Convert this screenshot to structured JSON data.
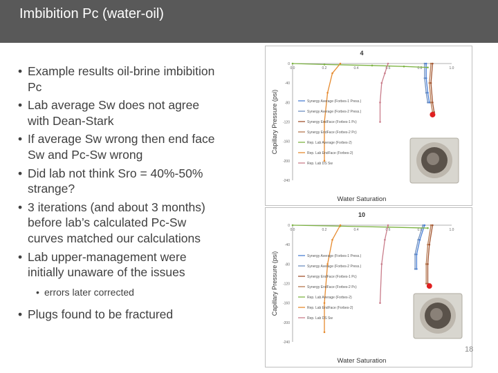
{
  "title": "Imbibition Pc (water-oil)",
  "bullets": [
    "Example results oil-brine imbibition Pc",
    "Lab average Sw does not agree with Dean-Stark",
    "If average Sw wrong then end face Sw and Pc-Sw wrong",
    "Did lab not think Sro = 40%-50% strange?",
    "3 iterations (and about 3 months) before lab’s calculated Pc-Sw curves matched our calculations",
    "Lab upper-management were initially unaware of the issues"
  ],
  "sub_bullet": "errors later corrected",
  "last_bullet": "Plugs found to be fractured",
  "page_number": "18",
  "chart_data": [
    {
      "type": "line",
      "title": "4",
      "xlabel": "Water Saturation",
      "ylabel": "Capillary Pressure (psi)",
      "xlim": [
        0,
        1.0
      ],
      "ylim": [
        -240,
        0
      ],
      "xticks": [
        "0.0",
        "0.2",
        "0.4",
        "0.6",
        "0.8",
        "1.0"
      ],
      "yticks": [
        "0",
        "-20",
        "-40",
        "-60",
        "-80",
        "-100",
        "-120",
        "-140",
        "-160",
        "-180",
        "-200",
        "-220",
        "-240"
      ],
      "legend": [
        "Synergy Average (Forbes-1 Press.)",
        "Synergy Average (Forbes-2 Press.)",
        "Synergy EndFace (Forbes-1 Pc)",
        "Synergy EndFace (Forbes-2 Pc)",
        "Rep. Lab Average (Forbes-2)",
        "Rep. Lab EndFace (Forbes-2)",
        "Rep. Lab DS Sw"
      ],
      "series": [
        {
          "color": "#4a7fd4",
          "points": [
            [
              0.84,
              0
            ],
            [
              0.84,
              -30
            ],
            [
              0.85,
              -60
            ],
            [
              0.86,
              -80
            ]
          ]
        },
        {
          "color": "#6c8ebf",
          "points": [
            [
              0.83,
              0
            ],
            [
              0.83,
              -30
            ],
            [
              0.84,
              -60
            ],
            [
              0.85,
              -80
            ]
          ]
        },
        {
          "color": "#a0522d",
          "points": [
            [
              0.88,
              0
            ],
            [
              0.87,
              -40
            ],
            [
              0.88,
              -80
            ],
            [
              0.89,
              -100
            ]
          ]
        },
        {
          "color": "#b5774f",
          "points": [
            [
              0.87,
              0
            ],
            [
              0.86,
              -40
            ],
            [
              0.87,
              -80
            ],
            [
              0.88,
              -100
            ]
          ]
        },
        {
          "color": "#7cb342",
          "points": [
            [
              0.0,
              0
            ],
            [
              0.2,
              -2
            ],
            [
              0.5,
              -4
            ],
            [
              0.7,
              -6
            ],
            [
              0.85,
              -8
            ]
          ]
        },
        {
          "color": "#e68a2e",
          "points": [
            [
              0.3,
              0
            ],
            [
              0.25,
              -20
            ],
            [
              0.22,
              -60
            ],
            [
              0.2,
              -120
            ],
            [
              0.2,
              -200
            ]
          ]
        },
        {
          "color": "#c97c8a",
          "points": [
            [
              0.6,
              0
            ],
            [
              0.58,
              -20
            ],
            [
              0.56,
              -40
            ],
            [
              0.55,
              -80
            ],
            [
              0.55,
              -120
            ]
          ]
        }
      ],
      "points": [
        {
          "label": "Rep. Lab DS Sw",
          "x": 0.88,
          "y": -105,
          "color": "#e02020"
        }
      ]
    },
    {
      "type": "line",
      "title": "10",
      "xlabel": "Water Saturation",
      "ylabel": "Capillary Pressure (psi)",
      "xlim": [
        0,
        1.0
      ],
      "ylim": [
        -240,
        0
      ],
      "xticks": [
        "0.0",
        "0.2",
        "0.4",
        "0.6",
        "0.8",
        "1.0"
      ],
      "yticks": [
        "0",
        "-20",
        "-40",
        "-60",
        "-80",
        "-100",
        "-120",
        "-140",
        "-160",
        "-180",
        "-200",
        "-220",
        "-240"
      ],
      "legend": [
        "Synergy Average (Forbes-1 Press.)",
        "Synergy Average (Forbes-2 Press.)",
        "Synergy EndFace (Forbes-1 Pc)",
        "Synergy EndFace (Forbes-2 Pc)",
        "Rep. Lab Average (Forbes-2)",
        "Rep. Lab EndFace (Forbes-2)",
        "Rep. Lab DS Sw"
      ],
      "series": [
        {
          "color": "#4a7fd4",
          "points": [
            [
              0.83,
              0
            ],
            [
              0.8,
              -30
            ],
            [
              0.78,
              -60
            ],
            [
              0.78,
              -90
            ]
          ]
        },
        {
          "color": "#6c8ebf",
          "points": [
            [
              0.82,
              0
            ],
            [
              0.79,
              -30
            ],
            [
              0.77,
              -60
            ],
            [
              0.77,
              -90
            ]
          ]
        },
        {
          "color": "#a0522d",
          "points": [
            [
              0.88,
              0
            ],
            [
              0.86,
              -40
            ],
            [
              0.85,
              -80
            ],
            [
              0.85,
              -120
            ]
          ]
        },
        {
          "color": "#b5774f",
          "points": [
            [
              0.87,
              0
            ],
            [
              0.85,
              -40
            ],
            [
              0.84,
              -80
            ],
            [
              0.84,
              -120
            ]
          ]
        },
        {
          "color": "#7cb342",
          "points": [
            [
              0.0,
              0
            ],
            [
              0.3,
              -2
            ],
            [
              0.6,
              -4
            ],
            [
              0.85,
              -6
            ]
          ]
        },
        {
          "color": "#e68a2e",
          "points": [
            [
              0.3,
              0
            ],
            [
              0.25,
              -30
            ],
            [
              0.22,
              -80
            ],
            [
              0.2,
              -160
            ],
            [
              0.2,
              -220
            ]
          ]
        },
        {
          "color": "#c97c8a",
          "points": [
            [
              0.6,
              0
            ],
            [
              0.58,
              -30
            ],
            [
              0.56,
              -80
            ],
            [
              0.55,
              -160
            ]
          ]
        }
      ],
      "points": [
        {
          "label": "Rep. Lab DS Sw",
          "x": 0.86,
          "y": -125,
          "color": "#e02020"
        }
      ]
    }
  ]
}
